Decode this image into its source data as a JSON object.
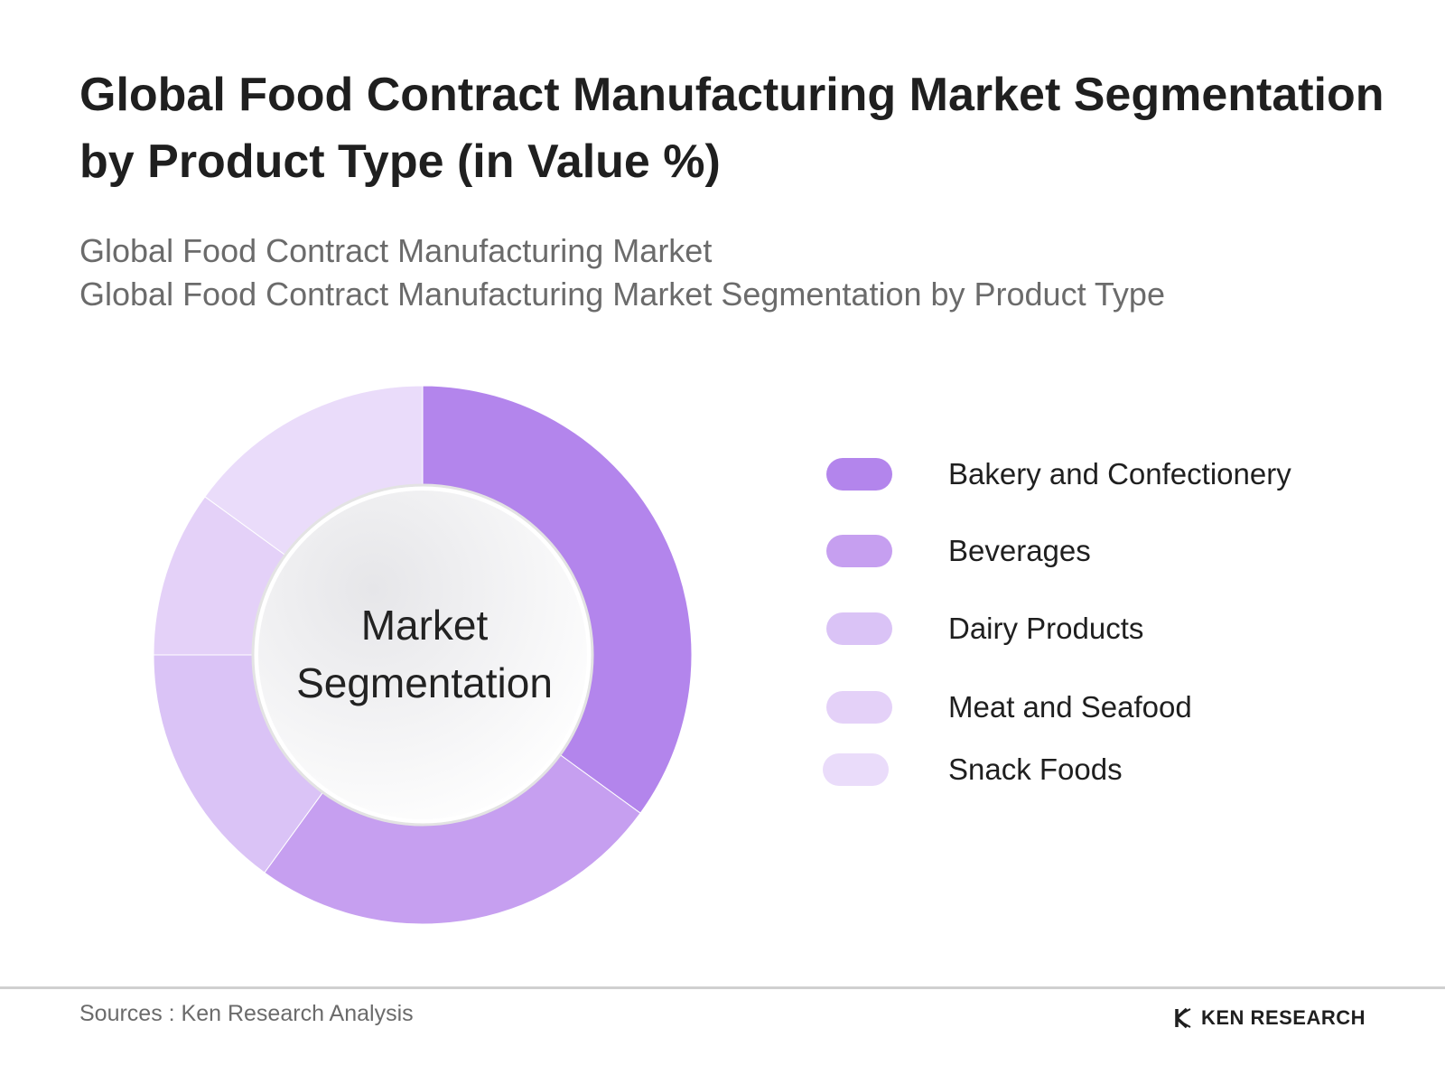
{
  "header": {
    "title": "Global Food Contract Manufacturing Market Segmentation by Product Type (in Value %)",
    "subtitle_line1": "Global Food Contract Manufacturing Market",
    "subtitle_line2": "Global Food Contract Manufacturing Market Segmentation by Product Type"
  },
  "chart_data": {
    "type": "pie",
    "variant": "donut",
    "center_label": "Market Segmentation",
    "center_label_line1": "Market",
    "center_label_line2": "Segmentation",
    "legend_placement": "right",
    "categories": [
      "Bakery and Confectionery",
      "Beverages",
      "Dairy Products",
      "Meat and Seafood",
      "Snack Foods"
    ],
    "values": [
      35,
      25,
      15,
      10,
      15
    ],
    "colors": [
      "#b385ec",
      "#c69ff0",
      "#dac3f6",
      "#e4d1f8",
      "#eadcfa"
    ]
  },
  "footer": {
    "source": "Sources : Ken Research Analysis",
    "brand": "KEN RESEARCH"
  }
}
